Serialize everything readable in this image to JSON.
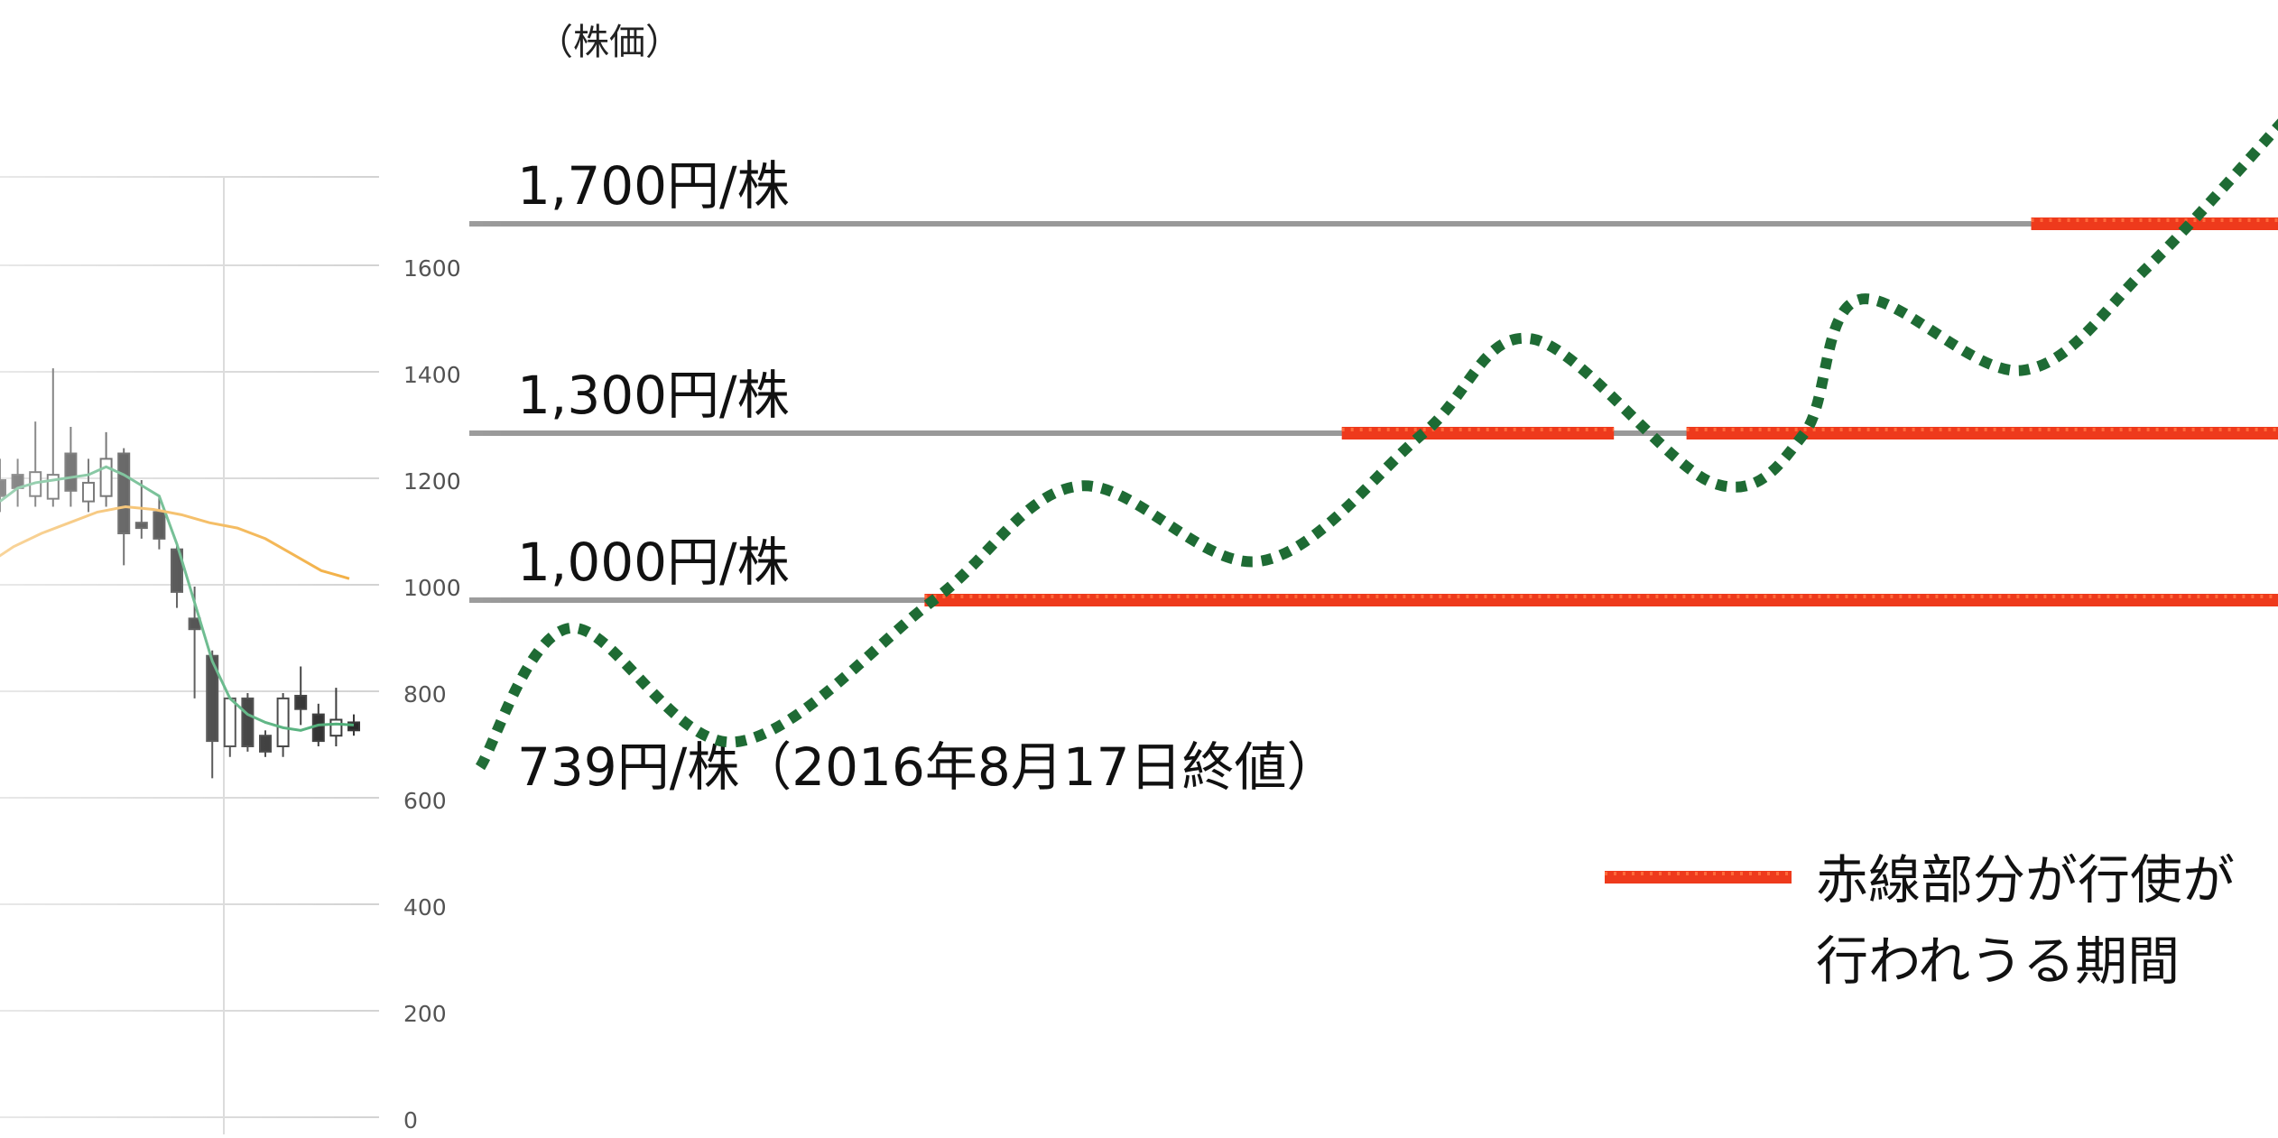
{
  "chart_data": [
    {
      "type": "line",
      "description_kind": "candlestick-stock-chart",
      "y_ticks": [
        "1600",
        "1400",
        "1200",
        "1000",
        "800",
        "600",
        "400",
        "200",
        "0"
      ],
      "y_tick_values": [
        1600,
        1400,
        1200,
        1000,
        800,
        600,
        400,
        200,
        0
      ],
      "ylim": [
        0,
        1700
      ],
      "candles": [
        {
          "o": 1200,
          "c": 1170,
          "h": 1240,
          "l": 1140
        },
        {
          "o": 1210,
          "c": 1185,
          "h": 1240,
          "l": 1150
        },
        {
          "o": 1170,
          "c": 1215,
          "h": 1310,
          "l": 1150
        },
        {
          "o": 1165,
          "c": 1210,
          "h": 1410,
          "l": 1150
        },
        {
          "o": 1250,
          "c": 1180,
          "h": 1300,
          "l": 1150
        },
        {
          "o": 1160,
          "c": 1195,
          "h": 1240,
          "l": 1140
        },
        {
          "o": 1170,
          "c": 1240,
          "h": 1290,
          "l": 1150
        },
        {
          "o": 1250,
          "c": 1100,
          "h": 1260,
          "l": 1040
        },
        {
          "o": 1120,
          "c": 1110,
          "h": 1200,
          "l": 1090
        },
        {
          "o": 1140,
          "c": 1090,
          "h": 1170,
          "l": 1070
        },
        {
          "o": 1070,
          "c": 990,
          "h": 1080,
          "l": 960
        },
        {
          "o": 940,
          "c": 920,
          "h": 1000,
          "l": 790
        },
        {
          "o": 870,
          "c": 710,
          "h": 880,
          "l": 640
        },
        {
          "o": 700,
          "c": 790,
          "h": 790,
          "l": 680
        },
        {
          "o": 790,
          "c": 700,
          "h": 800,
          "l": 690
        },
        {
          "o": 720,
          "c": 690,
          "h": 730,
          "l": 680
        },
        {
          "o": 700,
          "c": 790,
          "h": 800,
          "l": 680
        },
        {
          "o": 795,
          "c": 770,
          "h": 850,
          "l": 740
        },
        {
          "o": 760,
          "c": 710,
          "h": 780,
          "l": 700
        },
        {
          "o": 720,
          "c": 750,
          "h": 810,
          "l": 700
        },
        {
          "o": 745,
          "c": 730,
          "h": 760,
          "l": 720
        }
      ],
      "ma_short": [
        1160,
        1185,
        1195,
        1200,
        1205,
        1210,
        1225,
        1210,
        1190,
        1170,
        1080,
        970,
        860,
        790,
        760,
        745,
        735,
        730,
        740,
        742,
        740
      ],
      "ma_long": [
        880,
        915,
        960,
        1000,
        1040,
        1075,
        1100,
        1120,
        1140,
        1150,
        1145,
        1135,
        1120,
        1110,
        1090,
        1060,
        1030,
        1015
      ]
    },
    {
      "type": "line",
      "title": "",
      "ylabel": "（株価）",
      "thresholds": [
        {
          "label": "1,700円/株",
          "value": 1700
        },
        {
          "label": "1,300円/株",
          "value": 1300
        },
        {
          "label": "1,000円/株",
          "value": 1000
        }
      ],
      "start_label": "739円/株（2016年8月17日終値）",
      "start_value": 739,
      "illustrative_path": [
        {
          "x": 0.0,
          "y": 700
        },
        {
          "x": 0.05,
          "y": 950
        },
        {
          "x": 0.14,
          "y": 745
        },
        {
          "x": 0.25,
          "y": 1000
        },
        {
          "x": 0.33,
          "y": 1205
        },
        {
          "x": 0.43,
          "y": 1070
        },
        {
          "x": 0.52,
          "y": 1300
        },
        {
          "x": 0.58,
          "y": 1480
        },
        {
          "x": 0.68,
          "y": 1210
        },
        {
          "x": 0.73,
          "y": 1300
        },
        {
          "x": 0.76,
          "y": 1555
        },
        {
          "x": 0.85,
          "y": 1420
        },
        {
          "x": 0.92,
          "y": 1620
        },
        {
          "x": 1.0,
          "y": 1920
        }
      ],
      "exercise_periods": [
        {
          "value": 1700,
          "from": 0.85,
          "to": 1.0
        },
        {
          "value": 1300,
          "from": 0.47,
          "to": 0.62
        },
        {
          "value": 1300,
          "from": 0.66,
          "to": 1.0
        },
        {
          "value": 1000,
          "from": 0.24,
          "to": 1.0
        }
      ],
      "legend": {
        "line1": "赤線部分が行使が",
        "line2": "行われうる期間"
      },
      "colors": {
        "threshold": "#999999",
        "path": "#1e6b34",
        "exercise": "#ee3a1c",
        "candle_up": "#ffffff",
        "candle_down": "#000000",
        "ma_short": "#2a9d5c",
        "ma_long": "#f0a020",
        "grid": "#cccccc"
      }
    }
  ]
}
